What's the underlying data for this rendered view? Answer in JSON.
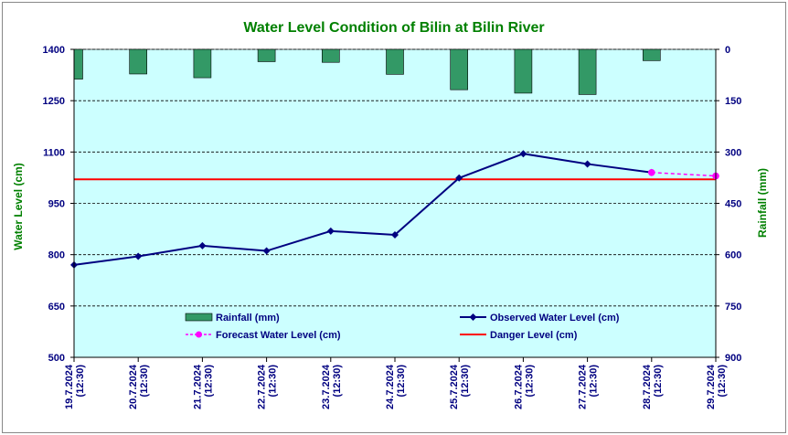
{
  "chart_data": {
    "type": "line",
    "title": "Water Level Condition of Bilin at Bilin River",
    "ylabel": "Water Level (cm)",
    "y2label": "Rainfall (mm)",
    "ylim": [
      500,
      1400
    ],
    "y2lim": [
      0,
      900
    ],
    "y2_inverted": true,
    "yticks": [
      "500",
      "650",
      "800",
      "950",
      "1100",
      "1250",
      "1400"
    ],
    "y2ticks": [
      "0",
      "150",
      "300",
      "450",
      "600",
      "750",
      "900"
    ],
    "grid": true,
    "legend_position": "bottom",
    "categories": [
      [
        "19.7.2024",
        "(12:30)"
      ],
      [
        "20.7.2024",
        "(12:30)"
      ],
      [
        "21.7.2024",
        "(12:30)"
      ],
      [
        "22.7.2024",
        "(12:30)"
      ],
      [
        "23.7.2024",
        "(12:30)"
      ],
      [
        "24.7.2024",
        "(12:30)"
      ],
      [
        "25.7.2024",
        "(12:30)"
      ],
      [
        "26.7.2024",
        "(12:30)"
      ],
      [
        "27.7.2024",
        "(12:30)"
      ],
      [
        "28.7.2024",
        "(12:30)"
      ],
      [
        "29.7.2024",
        "(12:30)"
      ]
    ],
    "series": [
      {
        "name": "Rainfall (mm)",
        "type": "bar",
        "axis": "y2",
        "color": "#339966",
        "x": [
          0,
          1,
          2,
          3,
          4,
          5,
          6,
          7,
          8,
          9
        ],
        "values": [
          87,
          72,
          83,
          36,
          38,
          73,
          118,
          128,
          132,
          33
        ]
      },
      {
        "name": "Observed Water Level (cm)",
        "type": "line",
        "axis": "y",
        "color": "#000080",
        "marker": "diamond",
        "x": [
          0,
          1,
          2,
          3,
          4,
          5,
          6,
          7,
          8,
          9
        ],
        "values": [
          770,
          795,
          826,
          811,
          869,
          858,
          1024,
          1095,
          1065,
          1040
        ]
      },
      {
        "name": "Forecast Water Level (cm)",
        "type": "line",
        "axis": "y",
        "color": "#ff00ff",
        "marker": "circle",
        "dashed": true,
        "x": [
          9,
          10
        ],
        "values": [
          1040,
          1030
        ]
      },
      {
        "name": "Danger Level (cm)",
        "type": "hline",
        "axis": "y",
        "color": "#ff0000",
        "value": 1020
      }
    ]
  }
}
